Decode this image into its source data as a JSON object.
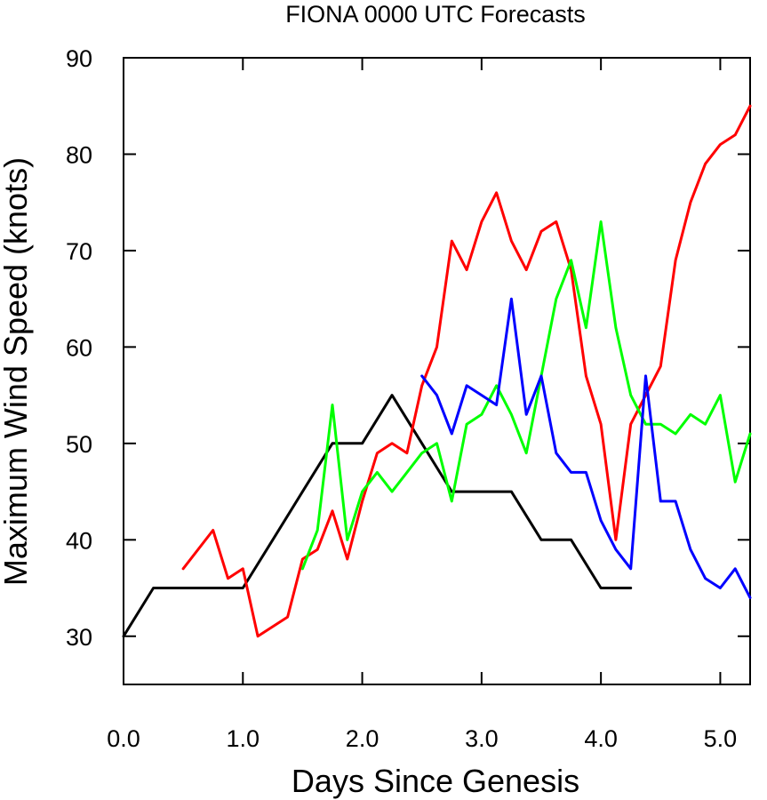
{
  "chart_data": {
    "type": "line",
    "title": "FIONA 0000 UTC Forecasts",
    "xlabel": "Days Since Genesis",
    "ylabel": "Maximum Wind Speed (knots)",
    "xlim": [
      0,
      5.25
    ],
    "ylim": [
      25,
      90
    ],
    "xticks": [
      "0.0",
      "1.0",
      "2.0",
      "3.0",
      "4.0",
      "5.0"
    ],
    "yticks": [
      "30",
      "40",
      "50",
      "60",
      "70",
      "80",
      "90"
    ],
    "grid": false,
    "legend": "none",
    "series": [
      {
        "color": "#000000",
        "points": [
          [
            0,
            30
          ],
          [
            0.25,
            35
          ],
          [
            0.5,
            35
          ],
          [
            0.75,
            35
          ],
          [
            1.0,
            35
          ],
          [
            1.25,
            40
          ],
          [
            1.5,
            45
          ],
          [
            1.75,
            50
          ],
          [
            2.0,
            50
          ],
          [
            2.25,
            55
          ],
          [
            2.5,
            50
          ],
          [
            2.75,
            45
          ],
          [
            3.0,
            45
          ],
          [
            3.25,
            45
          ],
          [
            3.5,
            40
          ],
          [
            3.75,
            40
          ],
          [
            4.0,
            35
          ],
          [
            4.25,
            35
          ]
        ]
      },
      {
        "color": "#ff0000",
        "points": [
          [
            0.5,
            37
          ],
          [
            0.75,
            41
          ],
          [
            0.875,
            36
          ],
          [
            1.0,
            37
          ],
          [
            1.125,
            30
          ],
          [
            1.375,
            32
          ],
          [
            1.5,
            38
          ],
          [
            1.625,
            39
          ],
          [
            1.75,
            43
          ],
          [
            1.875,
            38
          ],
          [
            2.0,
            44
          ],
          [
            2.125,
            49
          ],
          [
            2.25,
            50
          ],
          [
            2.375,
            49
          ],
          [
            2.5,
            56
          ],
          [
            2.625,
            60
          ],
          [
            2.75,
            71
          ],
          [
            2.875,
            68
          ],
          [
            3.0,
            73
          ],
          [
            3.125,
            76
          ],
          [
            3.25,
            71
          ],
          [
            3.375,
            68
          ],
          [
            3.5,
            72
          ],
          [
            3.625,
            73
          ],
          [
            3.75,
            68
          ],
          [
            3.875,
            57
          ],
          [
            4.0,
            52
          ],
          [
            4.125,
            40
          ],
          [
            4.25,
            52
          ],
          [
            4.375,
            55
          ],
          [
            4.5,
            58
          ],
          [
            4.625,
            69
          ],
          [
            4.75,
            75
          ],
          [
            4.875,
            79
          ],
          [
            5.0,
            81
          ],
          [
            5.125,
            82
          ],
          [
            5.25,
            85
          ]
        ]
      },
      {
        "color": "#00ff00",
        "points": [
          [
            1.5,
            37
          ],
          [
            1.625,
            41
          ],
          [
            1.75,
            54
          ],
          [
            1.875,
            40
          ],
          [
            2.0,
            45
          ],
          [
            2.125,
            47
          ],
          [
            2.25,
            45
          ],
          [
            2.375,
            47
          ],
          [
            2.5,
            49
          ],
          [
            2.625,
            50
          ],
          [
            2.75,
            44
          ],
          [
            2.875,
            52
          ],
          [
            3.0,
            53
          ],
          [
            3.125,
            56
          ],
          [
            3.25,
            53
          ],
          [
            3.375,
            49
          ],
          [
            3.5,
            57
          ],
          [
            3.625,
            65
          ],
          [
            3.75,
            69
          ],
          [
            3.875,
            62
          ],
          [
            4.0,
            73
          ],
          [
            4.125,
            62
          ],
          [
            4.25,
            55
          ],
          [
            4.375,
            52
          ],
          [
            4.5,
            52
          ],
          [
            4.625,
            51
          ],
          [
            4.75,
            53
          ],
          [
            4.875,
            52
          ],
          [
            5.0,
            55
          ],
          [
            5.125,
            46
          ],
          [
            5.25,
            51
          ]
        ]
      },
      {
        "color": "#0000ff",
        "points": [
          [
            2.5,
            57
          ],
          [
            2.625,
            55
          ],
          [
            2.75,
            51
          ],
          [
            2.875,
            56
          ],
          [
            3.0,
            55
          ],
          [
            3.125,
            54
          ],
          [
            3.25,
            65
          ],
          [
            3.375,
            53
          ],
          [
            3.5,
            57
          ],
          [
            3.625,
            49
          ],
          [
            3.75,
            47
          ],
          [
            3.875,
            47
          ],
          [
            4.0,
            42
          ],
          [
            4.125,
            39
          ],
          [
            4.25,
            37
          ],
          [
            4.375,
            57
          ],
          [
            4.5,
            44
          ],
          [
            4.625,
            44
          ],
          [
            4.75,
            39
          ],
          [
            4.875,
            36
          ],
          [
            5.0,
            35
          ],
          [
            5.125,
            37
          ],
          [
            5.25,
            34
          ]
        ]
      }
    ]
  }
}
